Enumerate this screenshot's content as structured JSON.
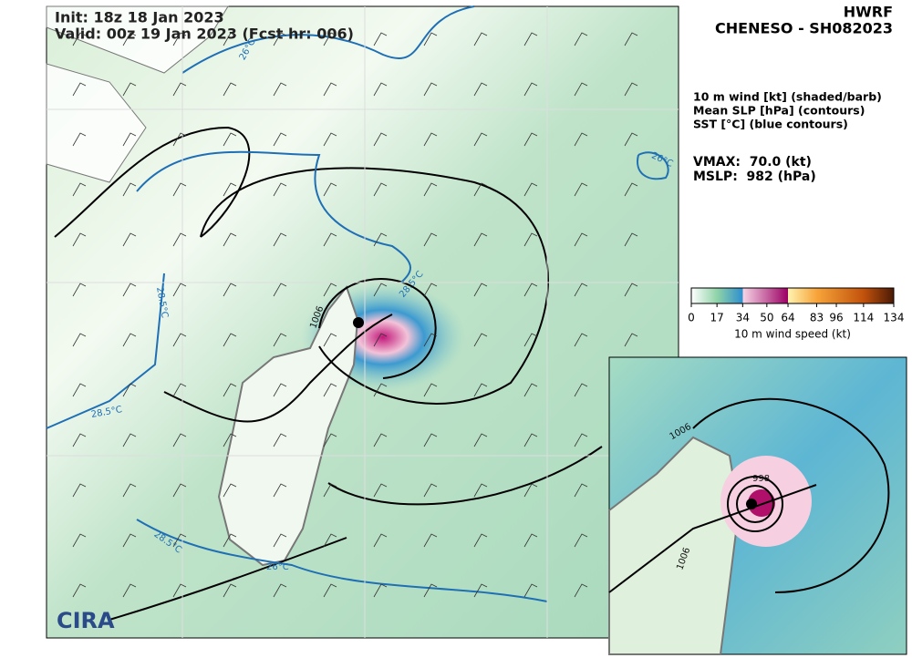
{
  "header": {
    "model": "HWRF",
    "storm": "CHENESO - SH082023"
  },
  "fields": [
    "10 m wind [kt] (shaded/barb)",
    "Mean SLP [hPa] (contours)",
    "SST [°C] (blue contours)"
  ],
  "stats": [
    "VMAX:  70.0 (kt)",
    "MSLP:  982 (hPa)"
  ],
  "map": {
    "init": "Init: 18z 18 Jan 2023",
    "valid": "Valid: 00z 19 Jan 2023 (Fcst hr: 006)",
    "contour_labels": [
      "26°C",
      "26°C",
      "28.5°C",
      "28.5°C",
      "28.5°C",
      "28.5°C",
      "26°C",
      "1006"
    ],
    "logo": "CIRA"
  },
  "inset": {
    "contour_labels": [
      "1006",
      "998",
      "1006"
    ]
  },
  "colorbar": {
    "lim": [
      0,
      134
    ],
    "ticks": [
      0,
      17,
      34,
      50,
      64,
      83,
      96,
      114,
      134
    ],
    "label": "10 m wind speed (kt)",
    "stops": [
      {
        "value": 0,
        "color": "#ffffff"
      },
      {
        "value": 17,
        "color": "#8fd3a8"
      },
      {
        "value": 34,
        "color": "#2e8fcf"
      },
      {
        "value": 34,
        "color": "#f6d6e6"
      },
      {
        "value": 64,
        "color": "#9b0064"
      },
      {
        "value": 64,
        "color": "#fff3b0"
      },
      {
        "value": 83,
        "color": "#f7a43a"
      },
      {
        "value": 114,
        "color": "#c2520c"
      },
      {
        "value": 134,
        "color": "#4a1a05"
      }
    ]
  }
}
